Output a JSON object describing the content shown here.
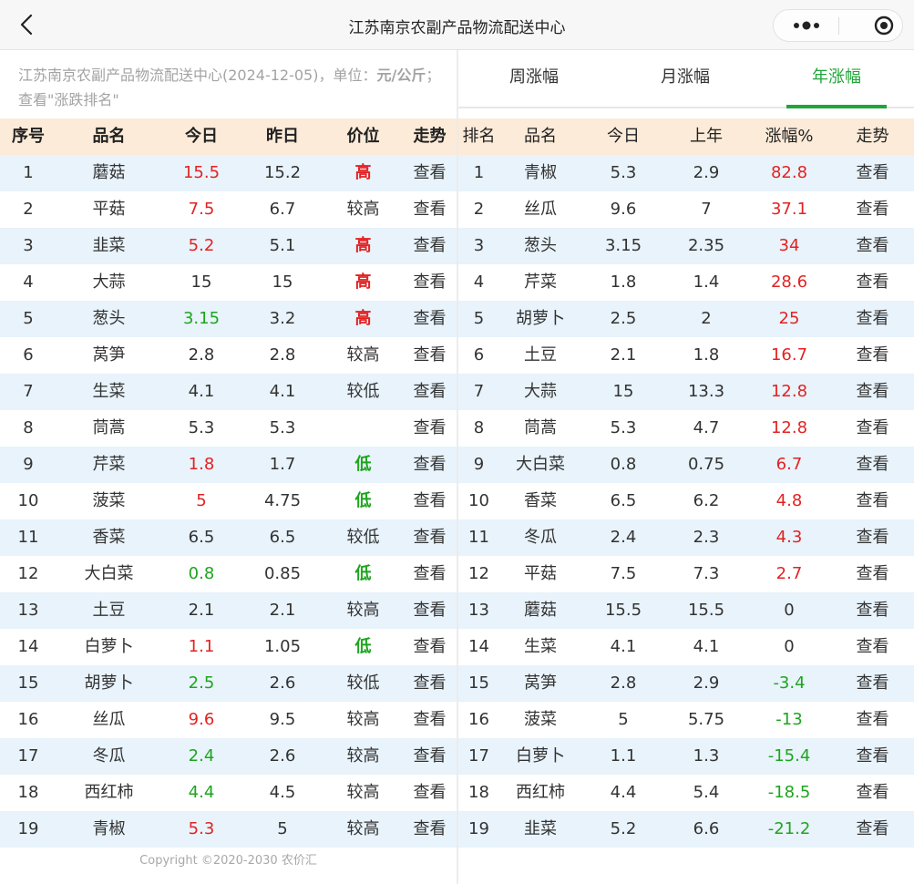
{
  "app": {
    "title": "江苏南京农副产品物流配送中心"
  },
  "info": {
    "prefix": "江苏南京农副产品物流配送中心(2024-12-05)，单位：",
    "unit": "元/公斤",
    "suffix": "；查看\"涨跌排名\""
  },
  "left_table": {
    "headers": [
      "序号",
      "品名",
      "今日",
      "昨日",
      "价位",
      "走势"
    ],
    "rows": [
      {
        "no": "1",
        "name": "蘑菇",
        "today": "15.5",
        "today_color": "red",
        "yesterday": "15.2",
        "level": "高",
        "level_type": "high",
        "trend": "查看"
      },
      {
        "no": "2",
        "name": "平菇",
        "today": "7.5",
        "today_color": "red",
        "yesterday": "6.7",
        "level": "较高",
        "level_type": "normal",
        "trend": "查看"
      },
      {
        "no": "3",
        "name": "韭菜",
        "today": "5.2",
        "today_color": "red",
        "yesterday": "5.1",
        "level": "高",
        "level_type": "high",
        "trend": "查看"
      },
      {
        "no": "4",
        "name": "大蒜",
        "today": "15",
        "today_color": "black",
        "yesterday": "15",
        "level": "高",
        "level_type": "high",
        "trend": "查看"
      },
      {
        "no": "5",
        "name": "葱头",
        "today": "3.15",
        "today_color": "green",
        "yesterday": "3.2",
        "level": "高",
        "level_type": "high",
        "trend": "查看"
      },
      {
        "no": "6",
        "name": "莴笋",
        "today": "2.8",
        "today_color": "black",
        "yesterday": "2.8",
        "level": "较高",
        "level_type": "normal",
        "trend": "查看"
      },
      {
        "no": "7",
        "name": "生菜",
        "today": "4.1",
        "today_color": "black",
        "yesterday": "4.1",
        "level": "较低",
        "level_type": "normal",
        "trend": "查看"
      },
      {
        "no": "8",
        "name": "茼蒿",
        "today": "5.3",
        "today_color": "black",
        "yesterday": "5.3",
        "level": "",
        "level_type": "normal",
        "trend": "查看"
      },
      {
        "no": "9",
        "name": "芹菜",
        "today": "1.8",
        "today_color": "red",
        "yesterday": "1.7",
        "level": "低",
        "level_type": "low",
        "trend": "查看"
      },
      {
        "no": "10",
        "name": "菠菜",
        "today": "5",
        "today_color": "red",
        "yesterday": "4.75",
        "level": "低",
        "level_type": "low",
        "trend": "查看"
      },
      {
        "no": "11",
        "name": "香菜",
        "today": "6.5",
        "today_color": "black",
        "yesterday": "6.5",
        "level": "较低",
        "level_type": "normal",
        "trend": "查看"
      },
      {
        "no": "12",
        "name": "大白菜",
        "today": "0.8",
        "today_color": "green",
        "yesterday": "0.85",
        "level": "低",
        "level_type": "low",
        "trend": "查看"
      },
      {
        "no": "13",
        "name": "土豆",
        "today": "2.1",
        "today_color": "black",
        "yesterday": "2.1",
        "level": "较高",
        "level_type": "normal",
        "trend": "查看"
      },
      {
        "no": "14",
        "name": "白萝卜",
        "today": "1.1",
        "today_color": "red",
        "yesterday": "1.05",
        "level": "低",
        "level_type": "low",
        "trend": "查看"
      },
      {
        "no": "15",
        "name": "胡萝卜",
        "today": "2.5",
        "today_color": "green",
        "yesterday": "2.6",
        "level": "较低",
        "level_type": "normal",
        "trend": "查看"
      },
      {
        "no": "16",
        "name": "丝瓜",
        "today": "9.6",
        "today_color": "red",
        "yesterday": "9.5",
        "level": "较高",
        "level_type": "normal",
        "trend": "查看"
      },
      {
        "no": "17",
        "name": "冬瓜",
        "today": "2.4",
        "today_color": "green",
        "yesterday": "2.6",
        "level": "较高",
        "level_type": "normal",
        "trend": "查看"
      },
      {
        "no": "18",
        "name": "西红柿",
        "today": "4.4",
        "today_color": "green",
        "yesterday": "4.5",
        "level": "较高",
        "level_type": "normal",
        "trend": "查看"
      },
      {
        "no": "19",
        "name": "青椒",
        "today": "5.3",
        "today_color": "red",
        "yesterday": "5",
        "level": "较高",
        "level_type": "normal",
        "trend": "查看"
      }
    ]
  },
  "copyright": "Copyright ©2020-2030 农价汇",
  "tabs": [
    {
      "label": "周涨幅",
      "active": false
    },
    {
      "label": "月涨幅",
      "active": false
    },
    {
      "label": "年涨幅",
      "active": true
    }
  ],
  "right_table": {
    "headers": [
      "排名",
      "品名",
      "今日",
      "上年",
      "涨幅%",
      "走势"
    ],
    "rows": [
      {
        "rank": "1",
        "name": "青椒",
        "today": "5.3",
        "last_year": "2.9",
        "change": "82.8",
        "change_color": "red",
        "trend": "查看"
      },
      {
        "rank": "2",
        "name": "丝瓜",
        "today": "9.6",
        "last_year": "7",
        "change": "37.1",
        "change_color": "red",
        "trend": "查看"
      },
      {
        "rank": "3",
        "name": "葱头",
        "today": "3.15",
        "last_year": "2.35",
        "change": "34",
        "change_color": "red",
        "trend": "查看"
      },
      {
        "rank": "4",
        "name": "芹菜",
        "today": "1.8",
        "last_year": "1.4",
        "change": "28.6",
        "change_color": "red",
        "trend": "查看"
      },
      {
        "rank": "5",
        "name": "胡萝卜",
        "today": "2.5",
        "last_year": "2",
        "change": "25",
        "change_color": "red",
        "trend": "查看"
      },
      {
        "rank": "6",
        "name": "土豆",
        "today": "2.1",
        "last_year": "1.8",
        "change": "16.7",
        "change_color": "red",
        "trend": "查看"
      },
      {
        "rank": "7",
        "name": "大蒜",
        "today": "15",
        "last_year": "13.3",
        "change": "12.8",
        "change_color": "red",
        "trend": "查看"
      },
      {
        "rank": "8",
        "name": "茼蒿",
        "today": "5.3",
        "last_year": "4.7",
        "change": "12.8",
        "change_color": "red",
        "trend": "查看"
      },
      {
        "rank": "9",
        "name": "大白菜",
        "today": "0.8",
        "last_year": "0.75",
        "change": "6.7",
        "change_color": "red",
        "trend": "查看"
      },
      {
        "rank": "10",
        "name": "香菜",
        "today": "6.5",
        "last_year": "6.2",
        "change": "4.8",
        "change_color": "red",
        "trend": "查看"
      },
      {
        "rank": "11",
        "name": "冬瓜",
        "today": "2.4",
        "last_year": "2.3",
        "change": "4.3",
        "change_color": "red",
        "trend": "查看"
      },
      {
        "rank": "12",
        "name": "平菇",
        "today": "7.5",
        "last_year": "7.3",
        "change": "2.7",
        "change_color": "red",
        "trend": "查看"
      },
      {
        "rank": "13",
        "name": "蘑菇",
        "today": "15.5",
        "last_year": "15.5",
        "change": "0",
        "change_color": "black",
        "trend": "查看"
      },
      {
        "rank": "14",
        "name": "生菜",
        "today": "4.1",
        "last_year": "4.1",
        "change": "0",
        "change_color": "black",
        "trend": "查看"
      },
      {
        "rank": "15",
        "name": "莴笋",
        "today": "2.8",
        "last_year": "2.9",
        "change": "-3.4",
        "change_color": "green",
        "trend": "查看"
      },
      {
        "rank": "16",
        "name": "菠菜",
        "today": "5",
        "last_year": "5.75",
        "change": "-13",
        "change_color": "green",
        "trend": "查看"
      },
      {
        "rank": "17",
        "name": "白萝卜",
        "today": "1.1",
        "last_year": "1.3",
        "change": "-15.4",
        "change_color": "green",
        "trend": "查看"
      },
      {
        "rank": "18",
        "name": "西红柿",
        "today": "4.4",
        "last_year": "5.4",
        "change": "-18.5",
        "change_color": "green",
        "trend": "查看"
      },
      {
        "rank": "19",
        "name": "韭菜",
        "today": "5.2",
        "last_year": "6.6",
        "change": "-21.2",
        "change_color": "green",
        "trend": "查看"
      }
    ]
  },
  "colors": {
    "accent": "#20a53a",
    "up": "#e32222",
    "down": "#1ea51e",
    "header_bg": "#fcebd8",
    "stripe_bg": "#e8f3fb"
  },
  "icons": {
    "back": "chevron-left-icon",
    "more": "more-dots-icon",
    "close": "target-circle-icon"
  }
}
